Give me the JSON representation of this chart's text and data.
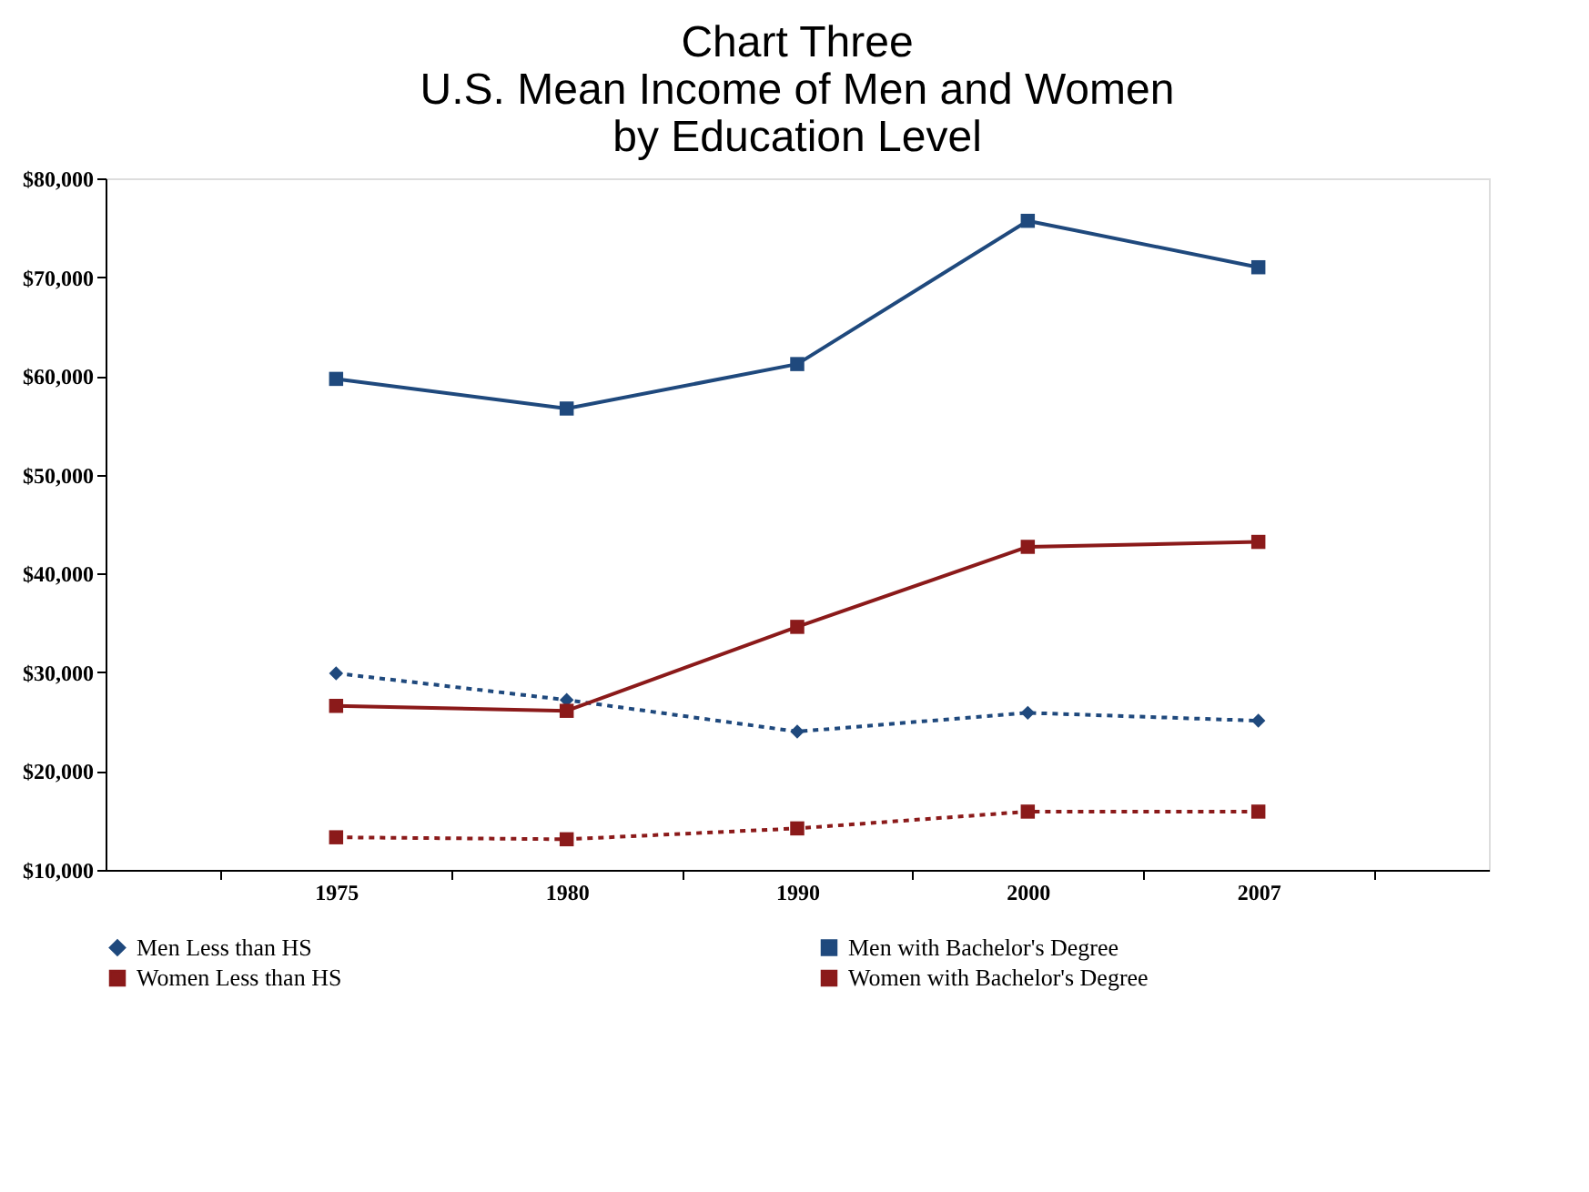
{
  "chart_data": {
    "type": "line",
    "title": "Chart Three\nU.S. Mean Income of Men and Women\nby Education Level",
    "categories": [
      "1975",
      "1980",
      "1990",
      "2000",
      "2007"
    ],
    "series": [
      {
        "name": "Men Less than HS",
        "color": "#1f497d",
        "line_style": "dotted",
        "marker": "diamond",
        "values": [
          29900,
          27200,
          24000,
          25900,
          25100
        ]
      },
      {
        "name": "Men with Bachelor's Degree",
        "color": "#1f497d",
        "line_style": "solid",
        "marker": "square",
        "values": [
          59700,
          56700,
          61200,
          75700,
          71000
        ]
      },
      {
        "name": "Women Less than HS",
        "color": "#8b1a1a",
        "line_style": "dotted",
        "marker": "square",
        "values": [
          13300,
          13100,
          14200,
          15900,
          15900
        ]
      },
      {
        "name": "Women with Bachelor's Degree",
        "color": "#8b1a1a",
        "line_style": "solid",
        "marker": "square",
        "values": [
          26600,
          26100,
          34600,
          42700,
          43200
        ]
      }
    ],
    "ylim": [
      10000,
      80000
    ],
    "yticks": [
      {
        "value": 10000,
        "label": "$10,000"
      },
      {
        "value": 20000,
        "label": "$20,000"
      },
      {
        "value": 30000,
        "label": "$30,000"
      },
      {
        "value": 40000,
        "label": "$40,000"
      },
      {
        "value": 50000,
        "label": "$50,000"
      },
      {
        "value": 60000,
        "label": "$60,000"
      },
      {
        "value": 70000,
        "label": "$70,000"
      },
      {
        "value": 80000,
        "label": "$80,000"
      }
    ],
    "grid": false,
    "legend": "bottom"
  }
}
